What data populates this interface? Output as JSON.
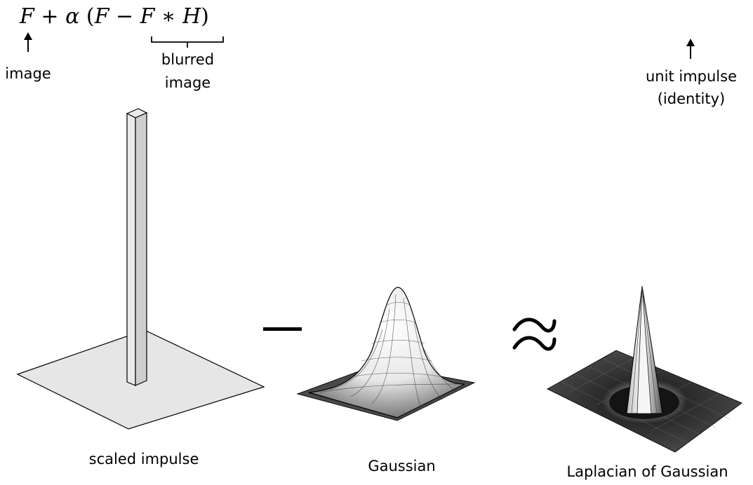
{
  "equation": {
    "F1": "F",
    "plus": "+",
    "alpha": "α",
    "lparen": "(",
    "F2": "F",
    "minus": "−",
    "F3": "F",
    "star": "∗",
    "H": "H",
    "rparen": ")"
  },
  "annotations": {
    "image": "image",
    "blurred_line1": "blurred",
    "blurred_line2": "image",
    "unit_line1": "unit impulse",
    "unit_line2": "(identity)"
  },
  "operators": {
    "minus": "−",
    "approx": "≈"
  },
  "captions": {
    "scaled_impulse": "scaled impulse",
    "gaussian": "Gaussian",
    "log": "Laplacian of Gaussian"
  }
}
